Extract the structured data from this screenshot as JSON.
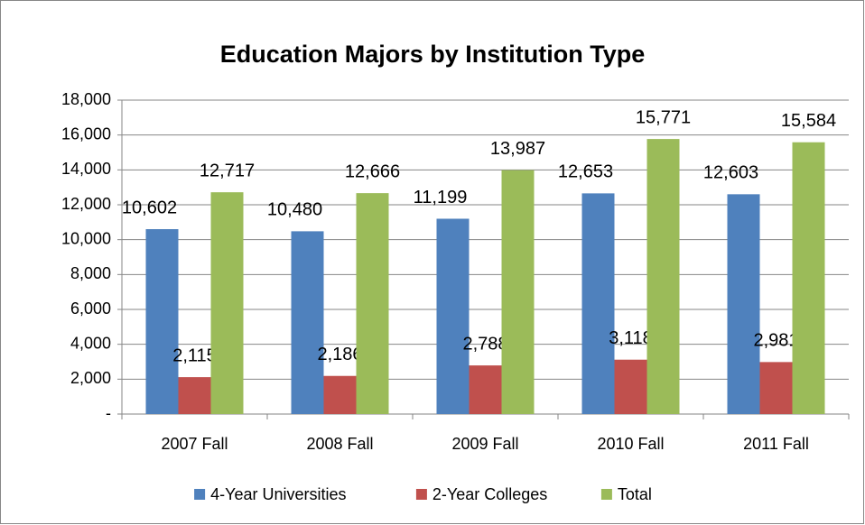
{
  "chart_data": {
    "type": "bar",
    "title": "Education Majors by Institution Type",
    "categories": [
      "2007 Fall",
      "2008 Fall",
      "2009 Fall",
      "2010 Fall",
      "2011 Fall"
    ],
    "series": [
      {
        "name": "4-Year Universities",
        "color": "#4f81bd",
        "values": [
          10602,
          10480,
          11199,
          12653,
          12603
        ],
        "value_labels": [
          "10,602",
          "10,480",
          "11,199",
          "12,653",
          "12,603"
        ]
      },
      {
        "name": "2-Year Colleges",
        "color": "#c0504d",
        "values": [
          2115,
          2186,
          2788,
          3118,
          2981
        ],
        "value_labels": [
          "2,115",
          "2,186",
          "2,788",
          "3,118",
          "2,981"
        ]
      },
      {
        "name": "Total",
        "color": "#9bbb59",
        "values": [
          12717,
          12666,
          13987,
          15771,
          15584
        ],
        "value_labels": [
          "12,717",
          "12,666",
          "13,987",
          "15,771",
          "15,584"
        ]
      }
    ],
    "ylim": [
      0,
      18000
    ],
    "yticks": [
      {
        "value": 0,
        "label": "-"
      },
      {
        "value": 2000,
        "label": "2,000"
      },
      {
        "value": 4000,
        "label": "4,000"
      },
      {
        "value": 6000,
        "label": "6,000"
      },
      {
        "value": 8000,
        "label": "8,000"
      },
      {
        "value": 10000,
        "label": "10,000"
      },
      {
        "value": 12000,
        "label": "12,000"
      },
      {
        "value": 14000,
        "label": "14,000"
      },
      {
        "value": 16000,
        "label": "16,000"
      },
      {
        "value": 18000,
        "label": "18,000"
      }
    ],
    "grid": true,
    "legend": "bottom"
  }
}
